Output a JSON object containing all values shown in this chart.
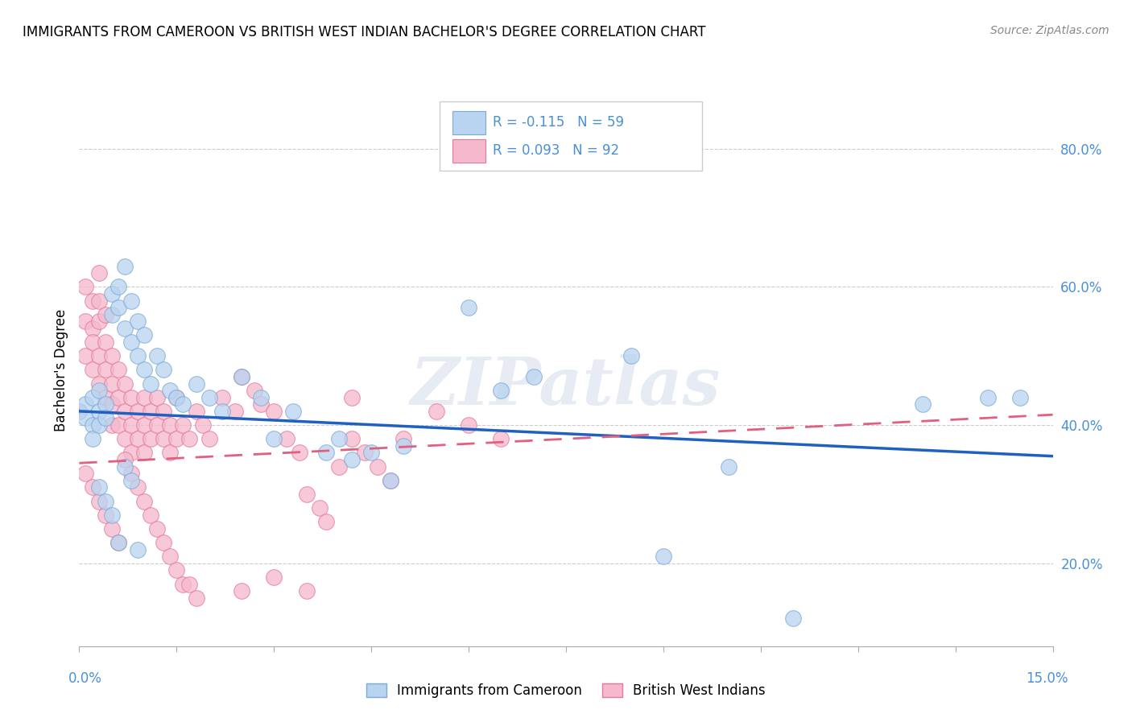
{
  "title": "IMMIGRANTS FROM CAMEROON VS BRITISH WEST INDIAN BACHELOR'S DEGREE CORRELATION CHART",
  "source": "Source: ZipAtlas.com",
  "watermark": "ZIPatlas",
  "legend1_label": "R = -0.115   N = 59",
  "legend2_label": "R = 0.093   N = 92",
  "axis_color": "#4a90d9",
  "scatter_blue_color": "#b8d4f0",
  "scatter_pink_color": "#f5b8cc",
  "scatter_blue_edge": "#7aaad8",
  "scatter_pink_edge": "#e87898",
  "line1_color": "#2060c0",
  "line2_color": "#e06080",
  "xlim": [
    0.0,
    0.15
  ],
  "ylim": [
    0.08,
    0.88
  ],
  "ytick_vals": [
    0.2,
    0.4,
    0.6,
    0.8
  ],
  "cameroon_x": [
    0.0,
    0.001,
    0.001,
    0.002,
    0.002,
    0.002,
    0.003,
    0.003,
    0.003,
    0.004,
    0.004,
    0.005,
    0.005,
    0.006,
    0.006,
    0.007,
    0.007,
    0.008,
    0.008,
    0.009,
    0.009,
    0.01,
    0.01,
    0.011,
    0.012,
    0.013,
    0.014,
    0.015,
    0.016,
    0.018,
    0.02,
    0.022,
    0.025,
    0.028,
    0.03,
    0.033,
    0.038,
    0.04,
    0.042,
    0.045,
    0.048,
    0.05,
    0.06,
    0.065,
    0.07,
    0.085,
    0.09,
    0.1,
    0.11,
    0.13,
    0.14,
    0.145,
    0.003,
    0.004,
    0.005,
    0.006,
    0.007,
    0.008,
    0.009
  ],
  "cameroon_y": [
    0.42,
    0.43,
    0.41,
    0.44,
    0.4,
    0.38,
    0.45,
    0.42,
    0.4,
    0.43,
    0.41,
    0.59,
    0.56,
    0.6,
    0.57,
    0.63,
    0.54,
    0.58,
    0.52,
    0.55,
    0.5,
    0.53,
    0.48,
    0.46,
    0.5,
    0.48,
    0.45,
    0.44,
    0.43,
    0.46,
    0.44,
    0.42,
    0.47,
    0.44,
    0.38,
    0.42,
    0.36,
    0.38,
    0.35,
    0.36,
    0.32,
    0.37,
    0.57,
    0.45,
    0.47,
    0.5,
    0.21,
    0.34,
    0.12,
    0.43,
    0.44,
    0.44,
    0.31,
    0.29,
    0.27,
    0.23,
    0.34,
    0.32,
    0.22
  ],
  "bwi_x": [
    0.0,
    0.001,
    0.001,
    0.001,
    0.002,
    0.002,
    0.002,
    0.002,
    0.003,
    0.003,
    0.003,
    0.003,
    0.003,
    0.004,
    0.004,
    0.004,
    0.004,
    0.005,
    0.005,
    0.005,
    0.005,
    0.006,
    0.006,
    0.006,
    0.007,
    0.007,
    0.007,
    0.008,
    0.008,
    0.008,
    0.009,
    0.009,
    0.01,
    0.01,
    0.01,
    0.011,
    0.011,
    0.012,
    0.012,
    0.013,
    0.013,
    0.014,
    0.014,
    0.015,
    0.015,
    0.016,
    0.017,
    0.018,
    0.019,
    0.02,
    0.022,
    0.024,
    0.025,
    0.027,
    0.028,
    0.03,
    0.032,
    0.034,
    0.035,
    0.037,
    0.038,
    0.04,
    0.042,
    0.044,
    0.046,
    0.048,
    0.05,
    0.055,
    0.06,
    0.065,
    0.001,
    0.002,
    0.003,
    0.004,
    0.005,
    0.006,
    0.007,
    0.008,
    0.009,
    0.01,
    0.011,
    0.012,
    0.013,
    0.014,
    0.015,
    0.016,
    0.017,
    0.018,
    0.025,
    0.03,
    0.035,
    0.042
  ],
  "bwi_y": [
    0.42,
    0.6,
    0.55,
    0.5,
    0.58,
    0.54,
    0.52,
    0.48,
    0.62,
    0.58,
    0.55,
    0.5,
    0.46,
    0.56,
    0.52,
    0.48,
    0.44,
    0.5,
    0.46,
    0.43,
    0.4,
    0.48,
    0.44,
    0.4,
    0.46,
    0.42,
    0.38,
    0.44,
    0.4,
    0.36,
    0.42,
    0.38,
    0.44,
    0.4,
    0.36,
    0.42,
    0.38,
    0.44,
    0.4,
    0.42,
    0.38,
    0.4,
    0.36,
    0.44,
    0.38,
    0.4,
    0.38,
    0.42,
    0.4,
    0.38,
    0.44,
    0.42,
    0.47,
    0.45,
    0.43,
    0.42,
    0.38,
    0.36,
    0.3,
    0.28,
    0.26,
    0.34,
    0.38,
    0.36,
    0.34,
    0.32,
    0.38,
    0.42,
    0.4,
    0.38,
    0.33,
    0.31,
    0.29,
    0.27,
    0.25,
    0.23,
    0.35,
    0.33,
    0.31,
    0.29,
    0.27,
    0.25,
    0.23,
    0.21,
    0.19,
    0.17,
    0.17,
    0.15,
    0.16,
    0.18,
    0.16,
    0.44
  ],
  "blue_trend_x0": 0.0,
  "blue_trend_x1": 0.15,
  "blue_trend_y0": 0.42,
  "blue_trend_y1": 0.355,
  "pink_trend_x0": 0.0,
  "pink_trend_x1": 0.15,
  "pink_trend_y0": 0.345,
  "pink_trend_y1": 0.415
}
